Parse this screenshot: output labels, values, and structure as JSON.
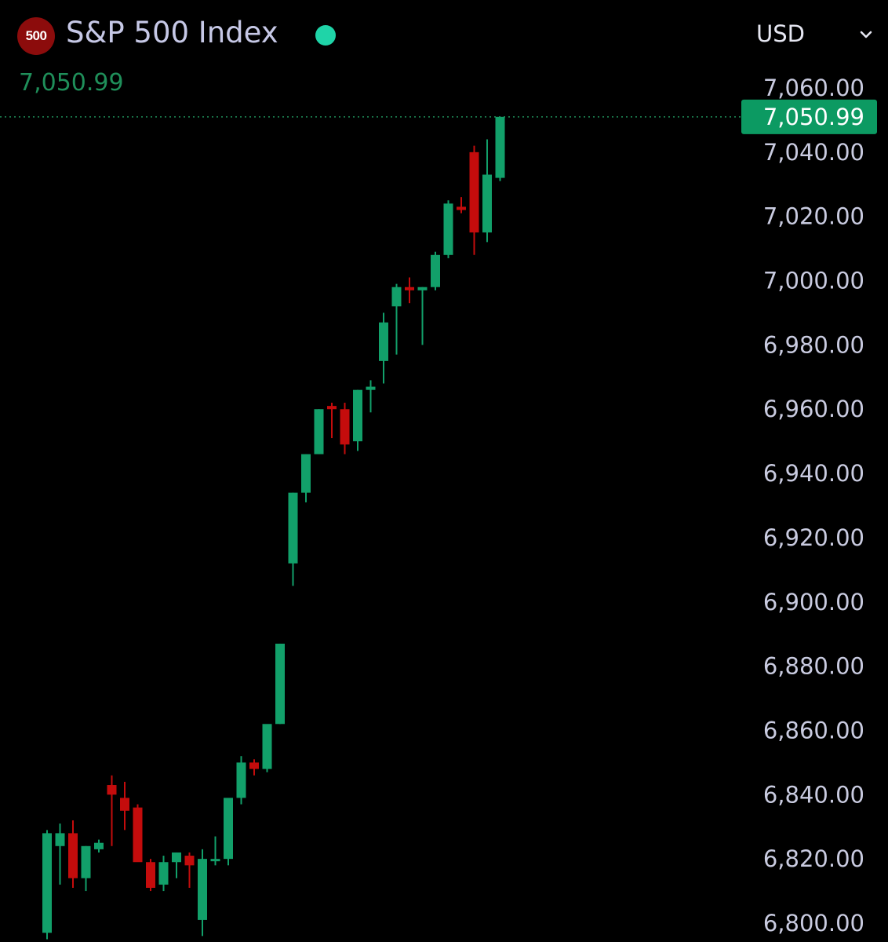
{
  "header": {
    "badge_text": "500",
    "title": "S&P 500 Index",
    "status_color": "#1fd4a8",
    "currency": "USD",
    "current_price": "7,050.99",
    "chevron_icon": "chevron-down-icon"
  },
  "colors": {
    "up": "#12a06a",
    "down": "#c40c0c",
    "background": "#000000",
    "last_price_bg": "#0c9a62"
  },
  "chart_data": {
    "type": "candlestick",
    "title": "S&P 500 Index",
    "xlabel": "",
    "ylabel": "",
    "ylim": [
      6800,
      7060
    ],
    "y_ticks": [
      "7,060.00",
      "7,040.00",
      "7,020.00",
      "7,000.00",
      "6,980.00",
      "6,960.00",
      "6,940.00",
      "6,920.00",
      "6,900.00",
      "6,880.00",
      "6,860.00",
      "6,840.00",
      "6,820.00",
      "6,800.00"
    ],
    "last_price": 7050.99,
    "last_price_label": "7,050.99",
    "grid": false,
    "candles": [
      {
        "o": 6797,
        "h": 6829,
        "l": 6795,
        "c": 6828
      },
      {
        "o": 6824,
        "h": 6831,
        "l": 6812,
        "c": 6828
      },
      {
        "o": 6828,
        "h": 6832,
        "l": 6811,
        "c": 6814
      },
      {
        "o": 6814,
        "h": 6824,
        "l": 6810,
        "c": 6824
      },
      {
        "o": 6823,
        "h": 6826,
        "l": 6822,
        "c": 6825
      },
      {
        "o": 6843,
        "h": 6846,
        "l": 6824,
        "c": 6840
      },
      {
        "o": 6839,
        "h": 6844,
        "l": 6829,
        "c": 6835
      },
      {
        "o": 6836,
        "h": 6837,
        "l": 6820,
        "c": 6819
      },
      {
        "o": 6819,
        "h": 6820,
        "l": 6810,
        "c": 6811
      },
      {
        "o": 6812,
        "h": 6821,
        "l": 6810,
        "c": 6819
      },
      {
        "o": 6819,
        "h": 6822,
        "l": 6814,
        "c": 6822
      },
      {
        "o": 6821,
        "h": 6822,
        "l": 6811,
        "c": 6818
      },
      {
        "o": 6801,
        "h": 6823,
        "l": 6796,
        "c": 6820
      },
      {
        "o": 6820,
        "h": 6827,
        "l": 6818,
        "c": 6820
      },
      {
        "o": 6820,
        "h": 6837,
        "l": 6818,
        "c": 6839
      },
      {
        "o": 6839,
        "h": 6852,
        "l": 6837,
        "c": 6850
      },
      {
        "o": 6850,
        "h": 6851,
        "l": 6846,
        "c": 6848
      },
      {
        "o": 6848,
        "h": 6861,
        "l": 6847,
        "c": 6862
      },
      {
        "o": 6862,
        "h": 6887,
        "l": 6862,
        "c": 6887
      },
      {
        "o": 6912,
        "h": 6934,
        "l": 6905,
        "c": 6934
      },
      {
        "o": 6934,
        "h": 6946,
        "l": 6931,
        "c": 6946
      },
      {
        "o": 6946,
        "h": 6960,
        "l": 6946,
        "c": 6960
      },
      {
        "o": 6961,
        "h": 6962,
        "l": 6951,
        "c": 6960
      },
      {
        "o": 6960,
        "h": 6962,
        "l": 6946,
        "c": 6949
      },
      {
        "o": 6950,
        "h": 6966,
        "l": 6947,
        "c": 6966
      },
      {
        "o": 6966,
        "h": 6969,
        "l": 6959,
        "c": 6967
      },
      {
        "o": 6975,
        "h": 6990,
        "l": 6968,
        "c": 6987
      },
      {
        "o": 6992,
        "h": 6999,
        "l": 6977,
        "c": 6998
      },
      {
        "o": 6998,
        "h": 7001,
        "l": 6993,
        "c": 6997
      },
      {
        "o": 6997,
        "h": 6998,
        "l": 6980,
        "c": 6998
      },
      {
        "o": 6998,
        "h": 7009,
        "l": 6997,
        "c": 7008
      },
      {
        "o": 7008,
        "h": 7025,
        "l": 7007,
        "c": 7024
      },
      {
        "o": 7023,
        "h": 7026,
        "l": 7021,
        "c": 7022
      },
      {
        "o": 7040,
        "h": 7042,
        "l": 7008,
        "c": 7015
      },
      {
        "o": 7015,
        "h": 7044,
        "l": 7012,
        "c": 7033
      },
      {
        "o": 7032,
        "h": 7051,
        "l": 7031,
        "c": 7051
      }
    ]
  }
}
